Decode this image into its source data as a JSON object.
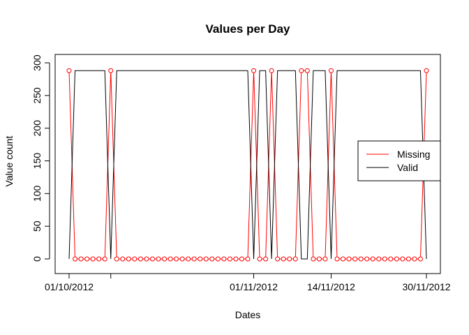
{
  "chart_data": {
    "type": "line",
    "title": "Values per Day",
    "xlabel": "Dates",
    "ylabel": "Value count",
    "x_tick_labels": [
      {
        "x": 1,
        "label": "01/10/2012"
      },
      {
        "x": 32,
        "label": "01/11/2012"
      },
      {
        "x": 45,
        "label": "14/11/2012"
      },
      {
        "x": 61,
        "label": "30/11/2012"
      }
    ],
    "x_tick_positions": [
      1,
      8,
      32,
      45,
      61
    ],
    "xlim": [
      1,
      61
    ],
    "ylim": [
      0,
      300
    ],
    "y_ticks": [
      0,
      50,
      100,
      150,
      200,
      250,
      300
    ],
    "legend": {
      "position": "right",
      "entries": [
        "Missing",
        "Valid"
      ]
    },
    "series": [
      {
        "name": "Missing",
        "color": "#ff0000",
        "marker": "circle",
        "values": [
          288,
          0,
          0,
          0,
          0,
          0,
          0,
          288,
          0,
          0,
          0,
          0,
          0,
          0,
          0,
          0,
          0,
          0,
          0,
          0,
          0,
          0,
          0,
          0,
          0,
          0,
          0,
          0,
          0,
          0,
          0,
          288,
          0,
          0,
          288,
          0,
          0,
          0,
          0,
          288,
          288,
          0,
          0,
          0,
          288,
          0,
          0,
          0,
          0,
          0,
          0,
          0,
          0,
          0,
          0,
          0,
          0,
          0,
          0,
          0,
          288
        ]
      },
      {
        "name": "Valid",
        "color": "#000000",
        "values": [
          0,
          288,
          288,
          288,
          288,
          288,
          288,
          0,
          288,
          288,
          288,
          288,
          288,
          288,
          288,
          288,
          288,
          288,
          288,
          288,
          288,
          288,
          288,
          288,
          288,
          288,
          288,
          288,
          288,
          288,
          288,
          0,
          288,
          288,
          0,
          288,
          288,
          288,
          288,
          0,
          0,
          288,
          288,
          288,
          0,
          288,
          288,
          288,
          288,
          288,
          288,
          288,
          288,
          288,
          288,
          288,
          288,
          288,
          288,
          288,
          0
        ]
      }
    ]
  }
}
